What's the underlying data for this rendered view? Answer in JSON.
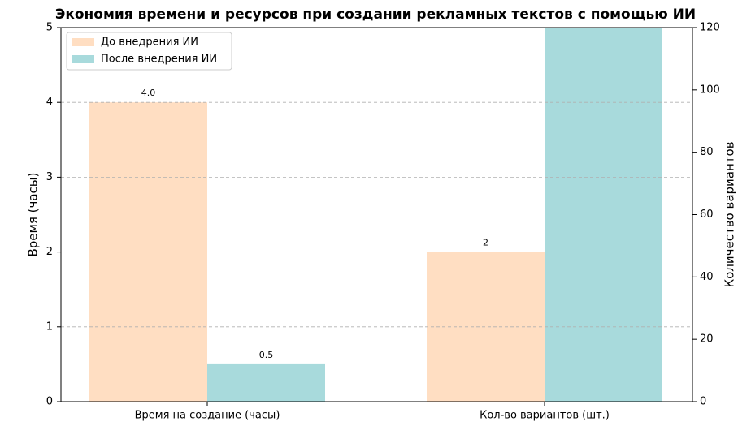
{
  "chart_data": {
    "type": "bar",
    "title": "Экономия времени и ресурсов при создании рекламных текстов с помощью ИИ",
    "ylabel": "Время (часы)",
    "y2label": "Количество вариантов",
    "categories": [
      "Время на создание (часы)",
      "Кол-во вариантов (шт.)"
    ],
    "series": [
      {
        "name": "До внедрения ИИ",
        "color": "#ffdec2",
        "values": [
          4.0,
          2
        ],
        "value_labels": [
          "4.0",
          "2"
        ]
      },
      {
        "name": "После внедрения ИИ",
        "color": "#a8dadc",
        "values": [
          0.5,
          5
        ],
        "value_labels": [
          "0.5",
          null
        ]
      }
    ],
    "ylim": [
      0,
      5
    ],
    "yticks": [
      0,
      1,
      2,
      3,
      4,
      5
    ],
    "y2lim": [
      0,
      120
    ],
    "y2ticks": [
      0,
      20,
      40,
      60,
      80,
      100,
      120
    ],
    "grid": true,
    "legend": "upper left",
    "ylabel_color": "#e9967a",
    "y2label_color": "#6fa8a8"
  }
}
